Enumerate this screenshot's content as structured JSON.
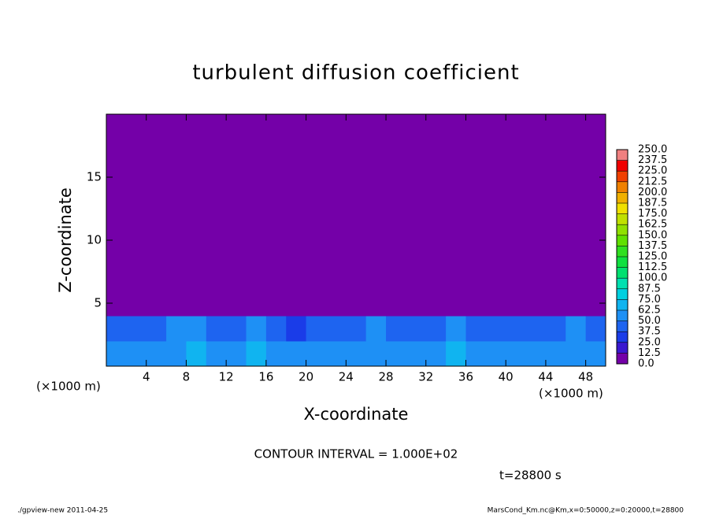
{
  "chart_data": {
    "type": "heatmap",
    "title": "turbulent diffusion coefficient",
    "x_label": "X-coordinate",
    "y_label": "Z-coordinate",
    "x_unit": "(×1000 m)",
    "y_unit": "(×1000 m)",
    "contour_note": "CONTOUR INTERVAL = 1.000E+02",
    "time_label": "t=28800 s",
    "footer_left": "./gpview-new  2011-04-25",
    "footer_right": "MarsCond_Km.nc@Km,x=0:50000,z=0:20000,t=28800",
    "xlim": [
      0,
      50
    ],
    "ylim": [
      0,
      20
    ],
    "xticks": [
      4,
      8,
      12,
      16,
      20,
      24,
      28,
      32,
      36,
      40,
      44,
      48
    ],
    "yticks": [
      5,
      10,
      15
    ],
    "x": [
      1,
      3,
      5,
      7,
      9,
      11,
      13,
      15,
      17,
      19,
      21,
      23,
      25,
      27,
      29,
      31,
      33,
      35,
      37,
      39,
      41,
      43,
      45,
      47,
      49
    ],
    "z": [
      1,
      3,
      5,
      7,
      9,
      11,
      13,
      15,
      17,
      19
    ],
    "values": [
      [
        60,
        55,
        50,
        62,
        70,
        55,
        58,
        65,
        60,
        50,
        55,
        62,
        58,
        60,
        55,
        50,
        60,
        65,
        55,
        58,
        62,
        55,
        50,
        58,
        60
      ],
      [
        40,
        45,
        38,
        50,
        55,
        45,
        48,
        50,
        42,
        35,
        40,
        45,
        48,
        50,
        42,
        40,
        45,
        55,
        48,
        42,
        45,
        40,
        38,
        50,
        45
      ],
      [
        0,
        0,
        0,
        0,
        0,
        0,
        0,
        0,
        0,
        0,
        0,
        0,
        0,
        0,
        0,
        0,
        0,
        0,
        0,
        0,
        0,
        0,
        0,
        0,
        0
      ],
      [
        0,
        0,
        0,
        0,
        0,
        0,
        0,
        0,
        0,
        0,
        0,
        0,
        0,
        0,
        0,
        0,
        0,
        0,
        0,
        0,
        0,
        0,
        0,
        0,
        0
      ],
      [
        0,
        0,
        0,
        0,
        0,
        0,
        0,
        0,
        0,
        0,
        0,
        0,
        0,
        0,
        0,
        0,
        0,
        0,
        0,
        0,
        0,
        0,
        0,
        0,
        0
      ],
      [
        0,
        0,
        0,
        0,
        0,
        0,
        0,
        0,
        0,
        0,
        0,
        0,
        0,
        0,
        0,
        0,
        0,
        0,
        0,
        0,
        0,
        0,
        0,
        0,
        0
      ],
      [
        0,
        0,
        0,
        0,
        0,
        0,
        0,
        0,
        0,
        0,
        0,
        0,
        0,
        0,
        0,
        0,
        0,
        0,
        0,
        0,
        0,
        0,
        0,
        0,
        0
      ],
      [
        0,
        0,
        0,
        0,
        0,
        0,
        0,
        0,
        0,
        0,
        0,
        0,
        0,
        0,
        0,
        0,
        0,
        0,
        0,
        0,
        0,
        0,
        0,
        0,
        0
      ],
      [
        0,
        0,
        0,
        0,
        0,
        0,
        0,
        0,
        0,
        0,
        0,
        0,
        0,
        0,
        0,
        0,
        0,
        0,
        0,
        0,
        0,
        0,
        0,
        0,
        0
      ],
      [
        0,
        0,
        0,
        0,
        0,
        0,
        0,
        0,
        0,
        0,
        0,
        0,
        0,
        0,
        0,
        0,
        0,
        0,
        0,
        0,
        0,
        0,
        0,
        0,
        0
      ]
    ],
    "levels": [
      {
        "value": 0,
        "label": "0.0"
      },
      {
        "value": 12.5,
        "label": "12.5"
      },
      {
        "value": 25,
        "label": "25.0"
      },
      {
        "value": 37.5,
        "label": "37.5"
      },
      {
        "value": 50,
        "label": "50.0"
      },
      {
        "value": 62.5,
        "label": "62.5"
      },
      {
        "value": 75,
        "label": "75.0"
      },
      {
        "value": 87.5,
        "label": "87.5"
      },
      {
        "value": 100,
        "label": "100.0"
      },
      {
        "value": 112.5,
        "label": "112.5"
      },
      {
        "value": 125,
        "label": "125.0"
      },
      {
        "value": 137.5,
        "label": "137.5"
      },
      {
        "value": 150,
        "label": "150.0"
      },
      {
        "value": 162.5,
        "label": "162.5"
      },
      {
        "value": 175,
        "label": "175.0"
      },
      {
        "value": 187.5,
        "label": "187.5"
      },
      {
        "value": 200,
        "label": "200.0"
      },
      {
        "value": 212.5,
        "label": "212.5"
      },
      {
        "value": 225,
        "label": "225.0"
      },
      {
        "value": 237.5,
        "label": "237.5"
      },
      {
        "value": 250,
        "label": "250.0"
      }
    ],
    "colors": [
      "#7400a8",
      "#3a18d0",
      "#1a3ce8",
      "#1e64f0",
      "#1e90f5",
      "#10b4f0",
      "#00d0e0",
      "#00e0b0",
      "#00e070",
      "#10e040",
      "#30e020",
      "#60e000",
      "#90e000",
      "#c0e000",
      "#f0e000",
      "#f0b000",
      "#f08000",
      "#f04000",
      "#f00000",
      "#f08080"
    ]
  }
}
